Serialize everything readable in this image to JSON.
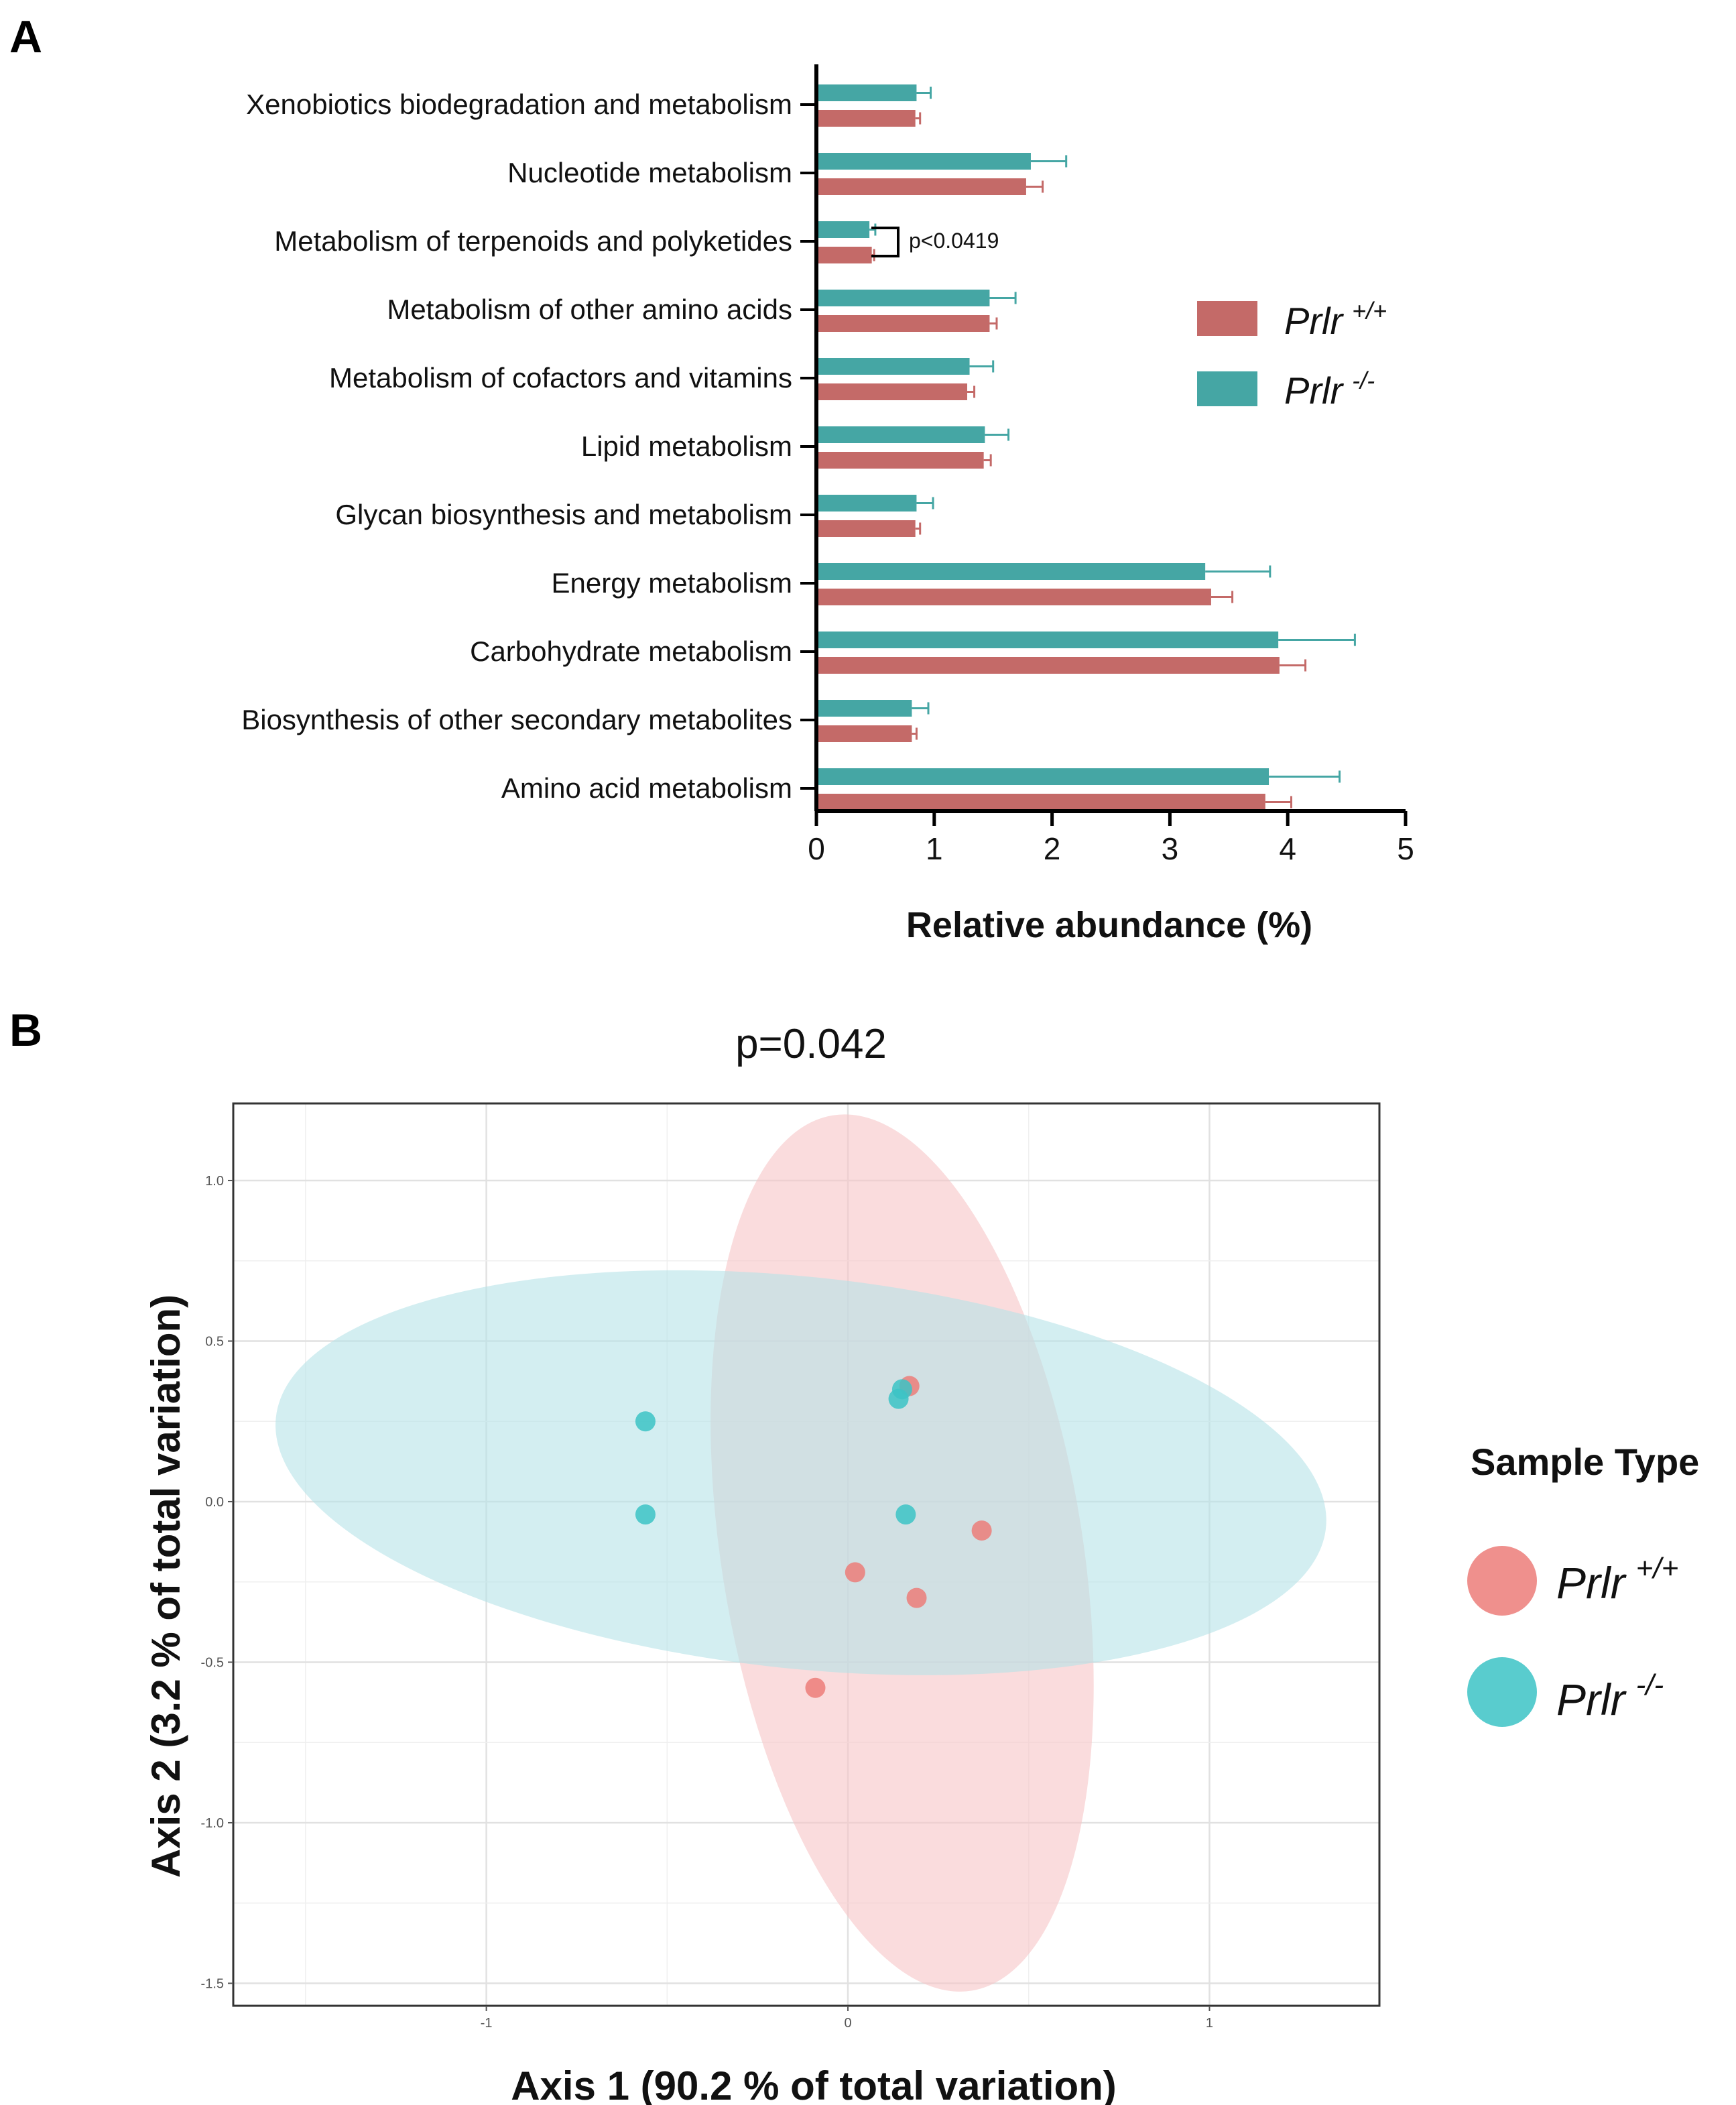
{
  "panel_a": {
    "letter": "A",
    "legend": [
      {
        "name": "Prlr",
        "sup": "+/+",
        "color": "#c46a68"
      },
      {
        "name": "Prlr",
        "sup": "-/-",
        "color": "#45a6a4"
      }
    ],
    "significance": "p<0.0419"
  },
  "panel_b": {
    "letter": "B",
    "legend": {
      "title": "Sample Type",
      "items": [
        {
          "name": "Prlr",
          "sup": "+/+",
          "color": "#ec7d79"
        },
        {
          "name": "Prlr",
          "sup": "-/-",
          "color": "#3cc3c6"
        }
      ]
    }
  },
  "chart_data": [
    {
      "type": "bar",
      "orientation": "horizontal",
      "title": "",
      "xlabel": "Relative abundance (%)",
      "ylabel": "",
      "xlim": [
        0,
        5
      ],
      "xticks": [
        "0",
        "1",
        "2",
        "3",
        "4",
        "5"
      ],
      "categories": [
        "Xenobiotics biodegradation and metabolism",
        "Nucleotide metabolism",
        "Metabolism of terpenoids and polyketides",
        "Metabolism of other amino acids",
        "Metabolism of cofactors and vitamins",
        "Lipid metabolism",
        "Glycan biosynthesis and metabolism",
        "Energy metabolism",
        "Carbohydrate metabolism",
        "Biosynthesis of other secondary metabolites",
        "Amino acid metabolism"
      ],
      "series": [
        {
          "name": "Prlr -/-",
          "color": "#45a6a4",
          "values": [
            0.85,
            1.82,
            0.45,
            1.47,
            1.3,
            1.43,
            0.85,
            3.3,
            3.92,
            0.81,
            3.84
          ],
          "errors": [
            0.12,
            0.3,
            0.05,
            0.22,
            0.2,
            0.2,
            0.14,
            0.55,
            0.65,
            0.14,
            0.6
          ]
        },
        {
          "name": "Prlr +/+",
          "color": "#c46a68",
          "values": [
            0.84,
            1.78,
            0.47,
            1.47,
            1.28,
            1.42,
            0.84,
            3.35,
            3.93,
            0.81,
            3.81
          ],
          "errors": [
            0.04,
            0.14,
            0.02,
            0.06,
            0.06,
            0.06,
            0.04,
            0.18,
            0.22,
            0.04,
            0.22
          ]
        }
      ],
      "annotation": {
        "text": "p<0.0419",
        "category": "Metabolism of terpenoids and polyketides"
      }
    },
    {
      "type": "scatter",
      "title": "p=0.042",
      "xlabel": "Axis 1 (90.2 % of total variation)",
      "ylabel": "Axis 2 (3.2 % of total variation)",
      "xlim": [
        -1.7,
        1.47
      ],
      "ylim": [
        -1.57,
        1.24
      ],
      "xticks": [
        -1,
        0,
        1
      ],
      "xtick_labels": [
        "-1",
        "0",
        "1"
      ],
      "yticks": [
        1.0,
        0.5,
        0.0,
        -0.5,
        -1.0,
        -1.5
      ],
      "ytick_labels": [
        "1.0",
        "0.5",
        "0.0",
        "-0.5",
        "-1.0",
        "-1.5"
      ],
      "grid": true,
      "series": [
        {
          "name": "Prlr +/+",
          "color": "#ec7d79",
          "points": [
            [
              0.17,
              0.36
            ],
            [
              0.37,
              -0.09
            ],
            [
              0.02,
              -0.22
            ],
            [
              0.19,
              -0.3
            ],
            [
              -0.09,
              -0.58
            ]
          ]
        },
        {
          "name": "Prlr -/-",
          "color": "#3cc3c6",
          "points": [
            [
              0.15,
              0.35
            ],
            [
              0.14,
              0.32
            ],
            [
              -0.56,
              0.25
            ],
            [
              -0.56,
              -0.04
            ],
            [
              0.16,
              -0.04
            ]
          ]
        }
      ],
      "ellipses": [
        {
          "group": "Prlr +/+",
          "color": "#f7c5c6",
          "cx": 0.15,
          "cy": -0.16,
          "rx": 0.5,
          "ry": 1.38,
          "angle_deg": -9
        },
        {
          "group": "Prlr -/-",
          "color": "#b6e3e8",
          "cx": -0.13,
          "cy": 0.09,
          "rx": 1.46,
          "ry": 0.61,
          "angle_deg": 6
        }
      ]
    }
  ]
}
